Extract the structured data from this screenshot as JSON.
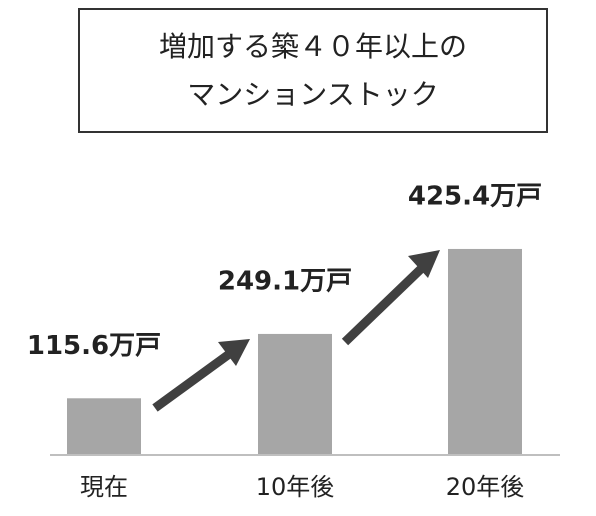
{
  "chart_data": {
    "type": "bar",
    "title": [
      "増加する築４０年以上の",
      "マンションストック"
    ],
    "categories": [
      "現在",
      "10年後",
      "20年後"
    ],
    "values": [
      115.6,
      249.1,
      425.4
    ],
    "value_labels": [
      "115.6万戸",
      "249.1万戸",
      "425.4万戸"
    ],
    "color": "#a6a6a6"
  }
}
